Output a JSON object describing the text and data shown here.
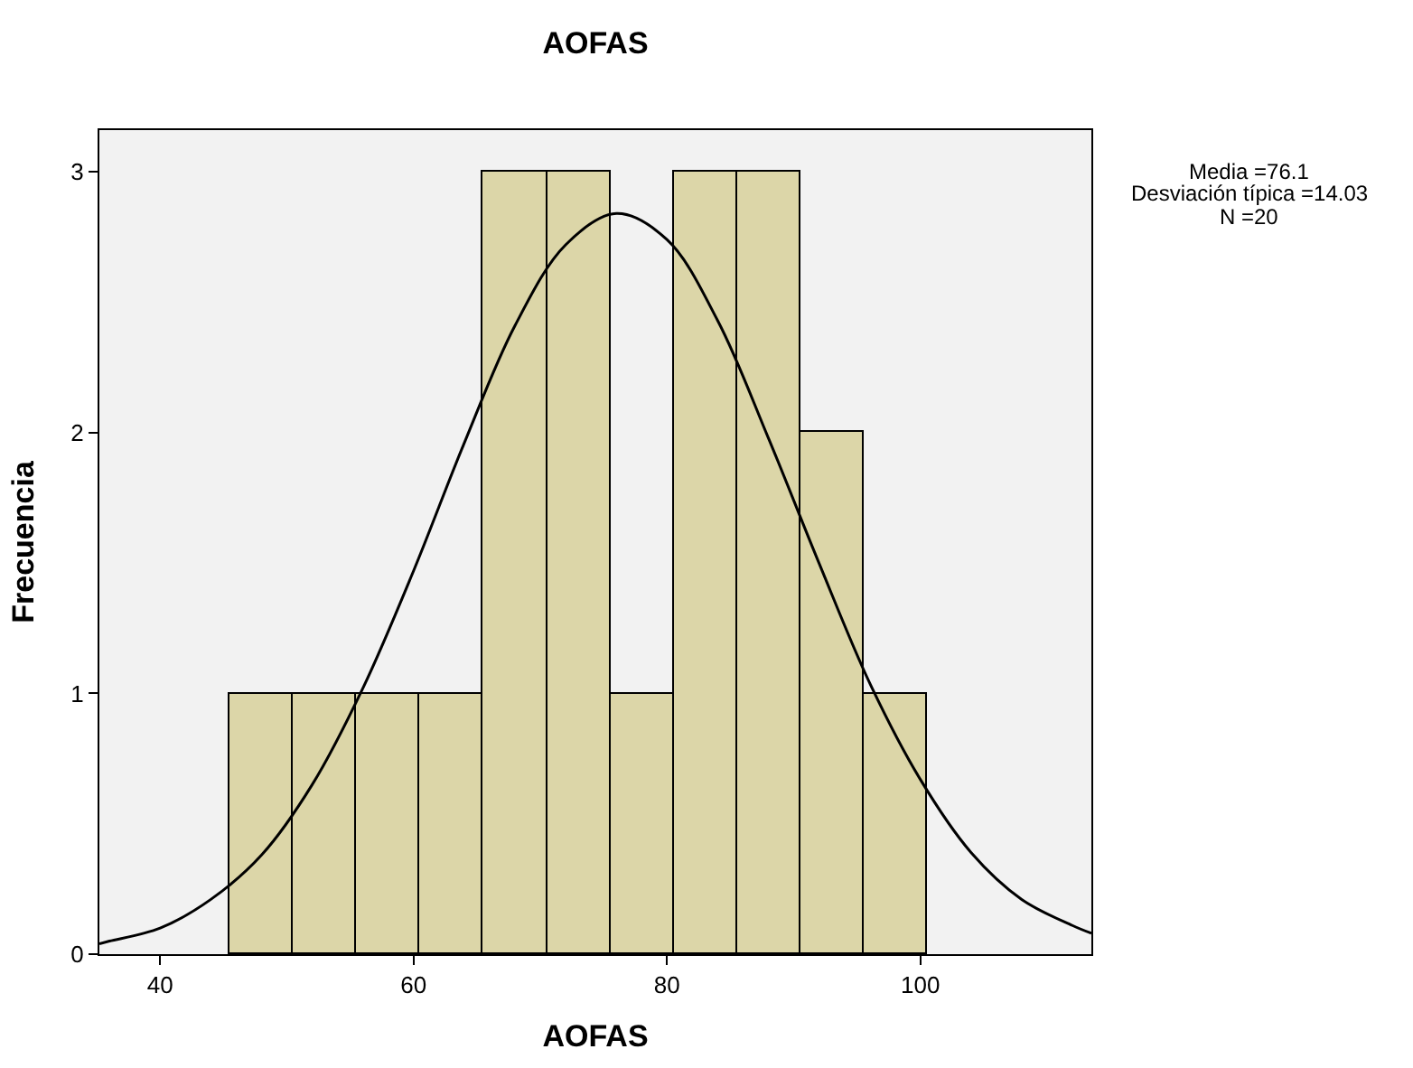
{
  "chart_data": {
    "type": "histogram",
    "title": "AOFAS",
    "xlabel": "AOFAS",
    "ylabel": "Frecuencia",
    "bins": [
      45.5,
      50.5,
      55.5,
      60.5,
      65.5,
      70.5,
      75.5,
      80.5,
      85.5,
      90.5,
      95.5,
      100.5
    ],
    "values": [
      1,
      1,
      1,
      1,
      3,
      3,
      1,
      3,
      3,
      2,
      1
    ],
    "color": "#dcd6a8",
    "series": [
      {
        "type": "line",
        "color": "#000000",
        "x": [
          35.2,
          36,
          40,
          44,
          48,
          52,
          56,
          60,
          64,
          68,
          72,
          76,
          80,
          84,
          88,
          92,
          96,
          100,
          104,
          108,
          112,
          113.5
        ],
        "values": [
          0.04,
          0.05,
          0.1,
          0.21,
          0.38,
          0.65,
          1.02,
          1.47,
          1.96,
          2.41,
          2.72,
          2.84,
          2.74,
          2.43,
          1.98,
          1.5,
          1.04,
          0.67,
          0.39,
          0.21,
          0.11,
          0.08
        ]
      }
    ],
    "xlim": [
      35.2,
      113.5
    ],
    "xticks": [
      40,
      60,
      80,
      100
    ],
    "ylim": [
      0,
      3.16
    ],
    "yticks": [
      0,
      1,
      2,
      3
    ],
    "grid": false,
    "annotations": [
      "Media =76.1",
      "Desviación típica =14.03",
      "N =20"
    ]
  }
}
